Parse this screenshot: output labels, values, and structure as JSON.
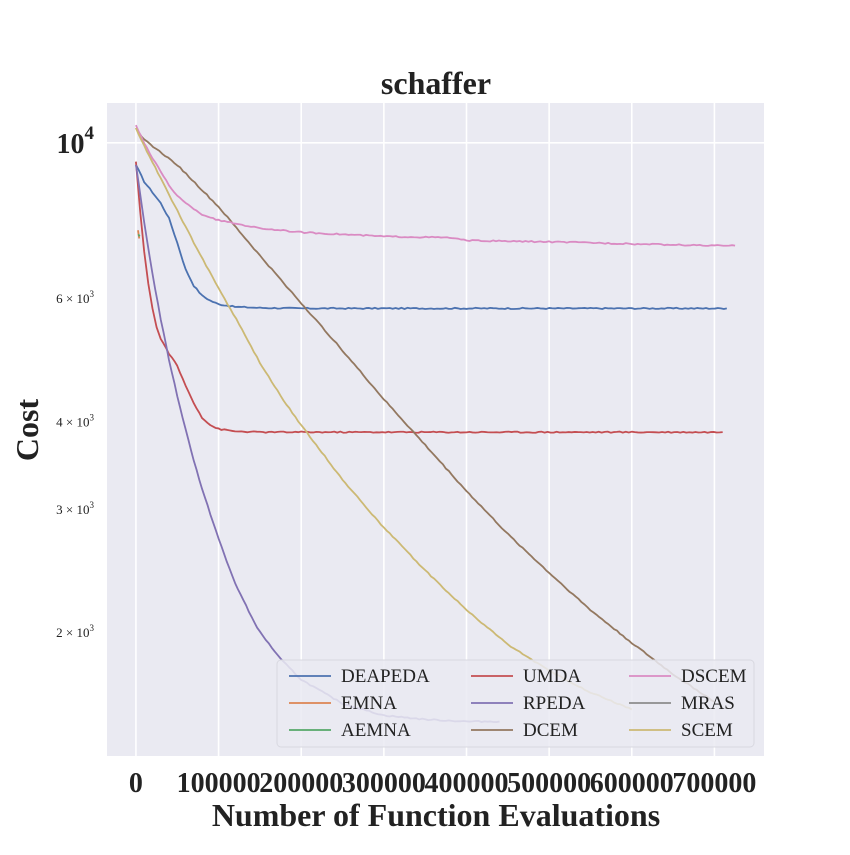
{
  "chart_data": {
    "type": "line",
    "title": "schaffer",
    "xlabel": "Number of Function Evaluations",
    "ylabel": "Cost",
    "x_ticks": [
      {
        "value": 0,
        "label": "0"
      },
      {
        "value": 100000,
        "label": "100000"
      },
      {
        "value": 200000,
        "label": "200000"
      },
      {
        "value": 300000,
        "label": "300000"
      },
      {
        "value": 400000,
        "label": "400000"
      },
      {
        "value": 500000,
        "label": "500000"
      },
      {
        "value": 600000,
        "label": "600000"
      },
      {
        "value": 700000,
        "label": "700000"
      }
    ],
    "y_major_ticks": [
      {
        "value": 10000,
        "base": "10",
        "exp": "4"
      }
    ],
    "y_minor_ticks": [
      {
        "value": 6000,
        "coef": "6 × 10",
        "exp": "3"
      },
      {
        "value": 4000,
        "coef": "4 × 10",
        "exp": "3"
      },
      {
        "value": 3000,
        "coef": "3 × 10",
        "exp": "3"
      },
      {
        "value": 2000,
        "coef": "2 × 10",
        "exp": "3"
      }
    ],
    "xlim": [
      -35000,
      760000
    ],
    "ylim": [
      1330,
      11400
    ],
    "y_scale": "log",
    "grid": true,
    "legend": {
      "location": "lower-right",
      "columns": 3
    },
    "series": [
      {
        "name": "DEAPEDA",
        "color": "#4c72b0",
        "x": [
          0,
          10000,
          20000,
          30000,
          40000,
          50000,
          60000,
          70000,
          80000,
          90000,
          100000,
          120000,
          150000,
          200000,
          300000,
          400000,
          500000,
          600000,
          715000
        ],
        "y": [
          9300,
          8800,
          8500,
          8200,
          7800,
          7200,
          6600,
          6250,
          6050,
          5950,
          5880,
          5830,
          5810,
          5800,
          5800,
          5800,
          5800,
          5800,
          5800
        ]
      },
      {
        "name": "EMNA",
        "color": "#dd8452",
        "x": [
          2500,
          4000
        ],
        "y": [
          7500,
          7300
        ]
      },
      {
        "name": "AEMNA",
        "color": "#55a868",
        "x": [
          3000,
          4500
        ],
        "y": [
          7400,
          7350
        ]
      },
      {
        "name": "UMDA",
        "color": "#c44e52",
        "x": [
          0,
          5000,
          10000,
          15000,
          20000,
          25000,
          30000,
          40000,
          50000,
          60000,
          70000,
          80000,
          90000,
          100000,
          120000,
          150000,
          200000,
          400000,
          600000,
          710000
        ],
        "y": [
          9400,
          8000,
          7000,
          6300,
          5800,
          5450,
          5250,
          5000,
          4800,
          4500,
          4250,
          4050,
          3950,
          3900,
          3870,
          3860,
          3860,
          3860,
          3860,
          3860
        ]
      },
      {
        "name": "RPEDA",
        "color": "#8172b3",
        "x": [
          0,
          10000,
          20000,
          30000,
          40000,
          50000,
          60000,
          70000,
          80000,
          90000,
          100000,
          110000,
          120000,
          130000,
          140000,
          150000,
          175000,
          200000,
          250000,
          300000,
          350000,
          400000,
          440000
        ],
        "y": [
          9300,
          7700,
          6500,
          5600,
          4900,
          4350,
          3900,
          3520,
          3200,
          2950,
          2720,
          2520,
          2350,
          2220,
          2100,
          2000,
          1830,
          1710,
          1580,
          1520,
          1500,
          1490,
          1490
        ]
      },
      {
        "name": "DCEM",
        "color": "#937860",
        "x": [
          0,
          10000,
          50000,
          100000,
          150000,
          200000,
          250000,
          300000,
          350000,
          400000,
          450000,
          500000,
          550000,
          600000,
          650000,
          700000
        ],
        "y": [
          10500,
          10100,
          9300,
          8100,
          6900,
          5900,
          5050,
          4300,
          3700,
          3180,
          2760,
          2430,
          2150,
          1930,
          1740,
          1590
        ]
      },
      {
        "name": "DSCEM",
        "color": "#da8bc3",
        "x": [
          0,
          10000,
          20000,
          30000,
          40000,
          50000,
          60000,
          70000,
          80000,
          100000,
          150000,
          200000,
          300000,
          380000,
          400000,
          500000,
          550000,
          600000,
          650000,
          700000,
          725000
        ],
        "y": [
          10600,
          10000,
          9500,
          9100,
          8700,
          8400,
          8200,
          8050,
          7900,
          7750,
          7550,
          7450,
          7350,
          7320,
          7250,
          7220,
          7200,
          7170,
          7150,
          7130,
          7130
        ]
      },
      {
        "name": "MRAS",
        "color": "#8c8c8c",
        "x": [],
        "y": []
      },
      {
        "name": "SCEM",
        "color": "#ccb974",
        "x": [
          0,
          10000,
          30000,
          50000,
          70000,
          100000,
          125000,
          150000,
          175000,
          200000,
          250000,
          300000,
          350000,
          400000,
          450000,
          500000,
          550000,
          600000
        ],
        "y": [
          10500,
          9900,
          8900,
          8000,
          7200,
          6200,
          5500,
          4850,
          4350,
          3950,
          3300,
          2820,
          2450,
          2150,
          1920,
          1760,
          1640,
          1550
        ]
      }
    ]
  }
}
